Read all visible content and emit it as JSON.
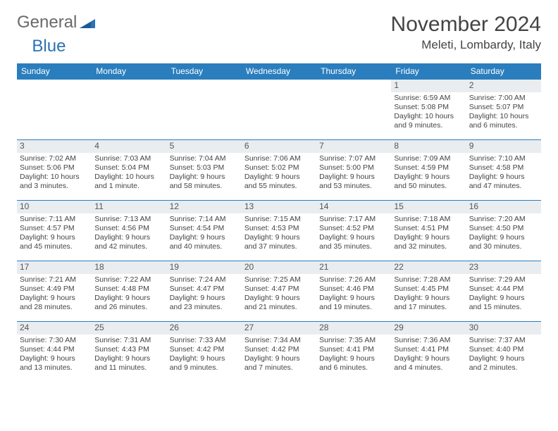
{
  "brand": {
    "part1": "General",
    "part2": "Blue"
  },
  "title": "November 2024",
  "location": "Meleti, Lombardy, Italy",
  "colors": {
    "header_bg": "#2a7ebd",
    "header_fg": "#ffffff",
    "border": "#2a7ebd",
    "daynum_bg": "#e9edf0",
    "text": "#444444",
    "brand_accent": "#2a72b5"
  },
  "weekdays": [
    "Sunday",
    "Monday",
    "Tuesday",
    "Wednesday",
    "Thursday",
    "Friday",
    "Saturday"
  ],
  "weeks": [
    [
      {
        "n": "",
        "sr": "",
        "ss": "",
        "dl": ""
      },
      {
        "n": "",
        "sr": "",
        "ss": "",
        "dl": ""
      },
      {
        "n": "",
        "sr": "",
        "ss": "",
        "dl": ""
      },
      {
        "n": "",
        "sr": "",
        "ss": "",
        "dl": ""
      },
      {
        "n": "",
        "sr": "",
        "ss": "",
        "dl": ""
      },
      {
        "n": "1",
        "sr": "Sunrise: 6:59 AM",
        "ss": "Sunset: 5:08 PM",
        "dl": "Daylight: 10 hours and 9 minutes."
      },
      {
        "n": "2",
        "sr": "Sunrise: 7:00 AM",
        "ss": "Sunset: 5:07 PM",
        "dl": "Daylight: 10 hours and 6 minutes."
      }
    ],
    [
      {
        "n": "3",
        "sr": "Sunrise: 7:02 AM",
        "ss": "Sunset: 5:06 PM",
        "dl": "Daylight: 10 hours and 3 minutes."
      },
      {
        "n": "4",
        "sr": "Sunrise: 7:03 AM",
        "ss": "Sunset: 5:04 PM",
        "dl": "Daylight: 10 hours and 1 minute."
      },
      {
        "n": "5",
        "sr": "Sunrise: 7:04 AM",
        "ss": "Sunset: 5:03 PM",
        "dl": "Daylight: 9 hours and 58 minutes."
      },
      {
        "n": "6",
        "sr": "Sunrise: 7:06 AM",
        "ss": "Sunset: 5:02 PM",
        "dl": "Daylight: 9 hours and 55 minutes."
      },
      {
        "n": "7",
        "sr": "Sunrise: 7:07 AM",
        "ss": "Sunset: 5:00 PM",
        "dl": "Daylight: 9 hours and 53 minutes."
      },
      {
        "n": "8",
        "sr": "Sunrise: 7:09 AM",
        "ss": "Sunset: 4:59 PM",
        "dl": "Daylight: 9 hours and 50 minutes."
      },
      {
        "n": "9",
        "sr": "Sunrise: 7:10 AM",
        "ss": "Sunset: 4:58 PM",
        "dl": "Daylight: 9 hours and 47 minutes."
      }
    ],
    [
      {
        "n": "10",
        "sr": "Sunrise: 7:11 AM",
        "ss": "Sunset: 4:57 PM",
        "dl": "Daylight: 9 hours and 45 minutes."
      },
      {
        "n": "11",
        "sr": "Sunrise: 7:13 AM",
        "ss": "Sunset: 4:56 PM",
        "dl": "Daylight: 9 hours and 42 minutes."
      },
      {
        "n": "12",
        "sr": "Sunrise: 7:14 AM",
        "ss": "Sunset: 4:54 PM",
        "dl": "Daylight: 9 hours and 40 minutes."
      },
      {
        "n": "13",
        "sr": "Sunrise: 7:15 AM",
        "ss": "Sunset: 4:53 PM",
        "dl": "Daylight: 9 hours and 37 minutes."
      },
      {
        "n": "14",
        "sr": "Sunrise: 7:17 AM",
        "ss": "Sunset: 4:52 PM",
        "dl": "Daylight: 9 hours and 35 minutes."
      },
      {
        "n": "15",
        "sr": "Sunrise: 7:18 AM",
        "ss": "Sunset: 4:51 PM",
        "dl": "Daylight: 9 hours and 32 minutes."
      },
      {
        "n": "16",
        "sr": "Sunrise: 7:20 AM",
        "ss": "Sunset: 4:50 PM",
        "dl": "Daylight: 9 hours and 30 minutes."
      }
    ],
    [
      {
        "n": "17",
        "sr": "Sunrise: 7:21 AM",
        "ss": "Sunset: 4:49 PM",
        "dl": "Daylight: 9 hours and 28 minutes."
      },
      {
        "n": "18",
        "sr": "Sunrise: 7:22 AM",
        "ss": "Sunset: 4:48 PM",
        "dl": "Daylight: 9 hours and 26 minutes."
      },
      {
        "n": "19",
        "sr": "Sunrise: 7:24 AM",
        "ss": "Sunset: 4:47 PM",
        "dl": "Daylight: 9 hours and 23 minutes."
      },
      {
        "n": "20",
        "sr": "Sunrise: 7:25 AM",
        "ss": "Sunset: 4:47 PM",
        "dl": "Daylight: 9 hours and 21 minutes."
      },
      {
        "n": "21",
        "sr": "Sunrise: 7:26 AM",
        "ss": "Sunset: 4:46 PM",
        "dl": "Daylight: 9 hours and 19 minutes."
      },
      {
        "n": "22",
        "sr": "Sunrise: 7:28 AM",
        "ss": "Sunset: 4:45 PM",
        "dl": "Daylight: 9 hours and 17 minutes."
      },
      {
        "n": "23",
        "sr": "Sunrise: 7:29 AM",
        "ss": "Sunset: 4:44 PM",
        "dl": "Daylight: 9 hours and 15 minutes."
      }
    ],
    [
      {
        "n": "24",
        "sr": "Sunrise: 7:30 AM",
        "ss": "Sunset: 4:44 PM",
        "dl": "Daylight: 9 hours and 13 minutes."
      },
      {
        "n": "25",
        "sr": "Sunrise: 7:31 AM",
        "ss": "Sunset: 4:43 PM",
        "dl": "Daylight: 9 hours and 11 minutes."
      },
      {
        "n": "26",
        "sr": "Sunrise: 7:33 AM",
        "ss": "Sunset: 4:42 PM",
        "dl": "Daylight: 9 hours and 9 minutes."
      },
      {
        "n": "27",
        "sr": "Sunrise: 7:34 AM",
        "ss": "Sunset: 4:42 PM",
        "dl": "Daylight: 9 hours and 7 minutes."
      },
      {
        "n": "28",
        "sr": "Sunrise: 7:35 AM",
        "ss": "Sunset: 4:41 PM",
        "dl": "Daylight: 9 hours and 6 minutes."
      },
      {
        "n": "29",
        "sr": "Sunrise: 7:36 AM",
        "ss": "Sunset: 4:41 PM",
        "dl": "Daylight: 9 hours and 4 minutes."
      },
      {
        "n": "30",
        "sr": "Sunrise: 7:37 AM",
        "ss": "Sunset: 4:40 PM",
        "dl": "Daylight: 9 hours and 2 minutes."
      }
    ]
  ]
}
